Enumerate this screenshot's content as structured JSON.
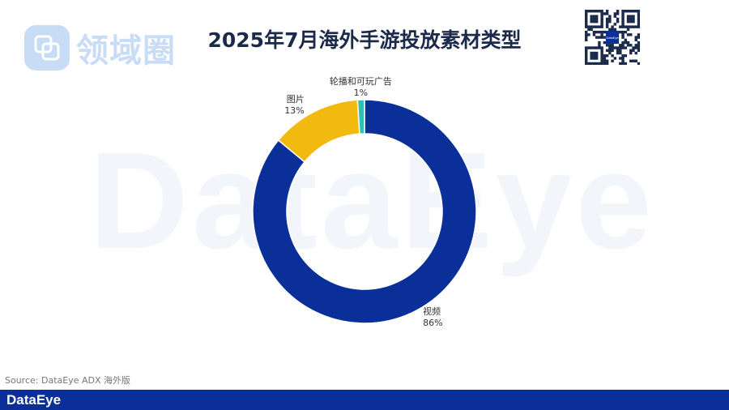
{
  "title": "2025年7月海外手游投放素材类型",
  "brand": {
    "watermark_text": "DataEye",
    "logo_text": "领域圈",
    "footer_logo_text": "DataEye"
  },
  "qr_label": "DataEye",
  "source": "Source: DataEye ADX 海外版",
  "colors": {
    "video": "#0b2f99",
    "image": "#f2b90f",
    "playable": "#2ec0b0",
    "footer": "#0b2f99"
  },
  "chart_data": {
    "type": "pie",
    "variant": "donut",
    "title": "2025年7月海外手游投放素材类型",
    "slices": [
      {
        "label": "视频",
        "value": 86,
        "display": "86%",
        "color": "#0b2f99"
      },
      {
        "label": "图片",
        "value": 13,
        "display": "13%",
        "color": "#f2b90f"
      },
      {
        "label": "轮播和可玩广告",
        "value": 1,
        "display": "1%",
        "color": "#2ec0b0"
      }
    ]
  }
}
